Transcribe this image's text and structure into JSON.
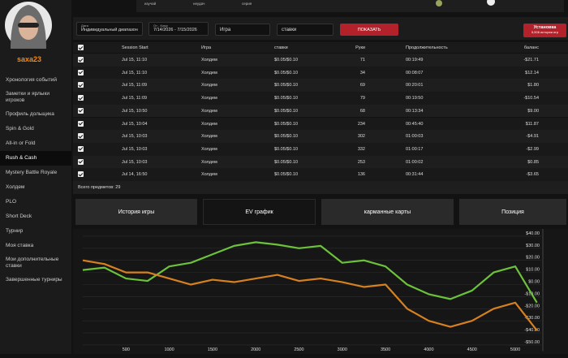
{
  "top_strip": [
    "изучай",
    "неудач",
    "серия"
  ],
  "sidebar": {
    "username": "saxa23",
    "menu": [
      {
        "label": "Хронология событий"
      },
      {
        "label": "Заметки и ярлыки игроков"
      },
      {
        "label": "Профиль дольщика"
      },
      {
        "label": "Spin & Gold"
      },
      {
        "label": "All-in or Fold"
      },
      {
        "label": "Rush & Cash",
        "active": true
      },
      {
        "label": "Mystery Battle Royale"
      },
      {
        "label": "Холдем"
      },
      {
        "label": "PLO"
      },
      {
        "label": "Short Deck"
      },
      {
        "label": "Турнир"
      },
      {
        "label": "Моя ставка"
      },
      {
        "label": "Мои дополнительные ставки"
      },
      {
        "label": "Завершенные турниры"
      }
    ]
  },
  "filters": {
    "date_label": "Дата",
    "date_value": "Индивидуальный диапазон",
    "range_label": "От - Кому",
    "range_value": "7/14/2026 - 7/15/2026",
    "game": "Игра",
    "stakes": "ставки",
    "show_button": "ПОКАЗАТЬ",
    "install_title": "Установка",
    "install_sub": "5,506 истории игр"
  },
  "table": {
    "headers": [
      "Session Start",
      "Игра",
      "ставки",
      "Руки",
      "Продолжительность",
      "баланс"
    ],
    "rows": [
      [
        "Jul 15, 11:10",
        "Холдем",
        "$0.05/$0.10",
        "71",
        "00:19:49",
        "-$21.71"
      ],
      [
        "Jul 15, 11:10",
        "Холдем",
        "$0.05/$0.10",
        "34",
        "00:08:07",
        "$12.14"
      ],
      [
        "Jul 15, 11:09",
        "Холдем",
        "$0.05/$0.10",
        "69",
        "00:20:01",
        "$1.80"
      ],
      [
        "Jul 15, 11:09",
        "Холдем",
        "$0.05/$0.10",
        "79",
        "00:19:50",
        "-$10.54"
      ],
      [
        "Jul 15, 10:50",
        "Холдем",
        "$0.05/$0.10",
        "68",
        "00:13:34",
        "$9.00"
      ],
      [
        "Jul 15, 10:04",
        "Холдем",
        "$0.05/$0.10",
        "234",
        "00:45:40",
        "$11.87"
      ],
      [
        "Jul 15, 10:03",
        "Холдем",
        "$0.05/$0.10",
        "302",
        "01:00:03",
        "-$4.91"
      ],
      [
        "Jul 15, 10:03",
        "Холдем",
        "$0.05/$0.10",
        "332",
        "01:00:17",
        "-$2.99"
      ],
      [
        "Jul 15, 10:03",
        "Холдем",
        "$0.05/$0.10",
        "253",
        "01:00:02",
        "$0.85"
      ],
      [
        "Jul 14, 16:50",
        "Холдем",
        "$0.05/$0.10",
        "136",
        "00:31:44",
        "-$3.65"
      ]
    ],
    "footer": "Всего предметов: 29"
  },
  "tabs": [
    {
      "label": "История игры"
    },
    {
      "label": "EV график",
      "active": true
    },
    {
      "label": "карманные карты"
    },
    {
      "label": "Позиция"
    }
  ],
  "ev_chart": {
    "type": "line",
    "x": [
      0,
      250,
      500,
      750,
      1000,
      1250,
      1500,
      1750,
      2000,
      2250,
      2500,
      2750,
      3000,
      3250,
      3500,
      3750,
      4000,
      4250,
      4500,
      4750,
      5000,
      5250
    ],
    "series": [
      {
        "color": "#6cc23a",
        "values": [
          12,
          14,
          5,
          3,
          15,
          18,
          25,
          32,
          35,
          33,
          30,
          32,
          18,
          20,
          15,
          0,
          -8,
          -12,
          -5,
          10,
          15,
          -15
        ]
      },
      {
        "color": "#d6801f",
        "values": [
          20,
          17,
          10,
          10,
          5,
          0,
          4,
          2,
          5,
          8,
          3,
          5,
          2,
          -2,
          0,
          -20,
          -30,
          -35,
          -30,
          -20,
          -15,
          -38
        ]
      }
    ],
    "xlim": [
      0,
      5300
    ],
    "ylim": [
      -55,
      45
    ],
    "xticks": [
      500,
      1000,
      1500,
      2000,
      2500,
      3000,
      3500,
      4000,
      4500,
      5000
    ],
    "yticks": [
      {
        "value": 40,
        "label": "$40.00"
      },
      {
        "value": 30,
        "label": "$30.00"
      },
      {
        "value": 20,
        "label": "$20.00"
      },
      {
        "value": 10,
        "label": "$10.00"
      },
      {
        "value": 0,
        "label": "$0.00"
      },
      {
        "value": -10,
        "label": "-$10.00"
      },
      {
        "value": -20,
        "label": "-$20.00"
      },
      {
        "value": -30,
        "label": "-$30.00"
      },
      {
        "value": -40,
        "label": "-$40.00"
      },
      {
        "value": -50,
        "label": "-$50.00"
      }
    ],
    "grid": true
  }
}
